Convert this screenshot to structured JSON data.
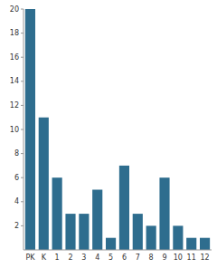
{
  "chart_data": {
    "type": "bar",
    "categories": [
      "PK",
      "K",
      "1",
      "2",
      "3",
      "4",
      "5",
      "6",
      "7",
      "8",
      "9",
      "10",
      "11",
      "12"
    ],
    "values": [
      20,
      11,
      6,
      3,
      3,
      5,
      1,
      7,
      3,
      2,
      6,
      2,
      1,
      1
    ],
    "color": "#2e6d8e",
    "ylim": [
      0,
      20
    ],
    "yticks": [
      2,
      4,
      6,
      8,
      10,
      12,
      14,
      16,
      18,
      20
    ],
    "grid": false
  }
}
